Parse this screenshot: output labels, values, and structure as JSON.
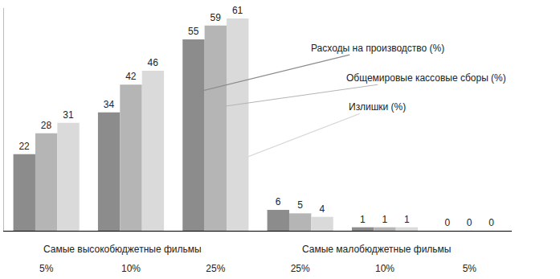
{
  "chart_data": {
    "type": "bar",
    "categories": [
      "5%",
      "10%",
      "25%",
      "25%",
      "10%",
      "5%"
    ],
    "annotations": [
      "Самые высокобюджетные фильмы",
      "Самые малобюджетные фильмы"
    ],
    "series": [
      {
        "name": "Расходы на производство (%)",
        "color": "#8c8c8c",
        "values": [
          22,
          34,
          55,
          6,
          1,
          0
        ]
      },
      {
        "name": "Общемировые кассовые сборы (%)",
        "color": "#b5b5b5",
        "values": [
          28,
          42,
          59,
          5,
          1,
          0
        ]
      },
      {
        "name": "Излишки (%)",
        "color": "#dadada",
        "values": [
          31,
          46,
          61,
          4,
          1,
          0
        ]
      }
    ],
    "ylim": [
      0,
      64
    ],
    "yticks": [],
    "grid": false,
    "data_labels": true,
    "tick_labels": "x"
  }
}
